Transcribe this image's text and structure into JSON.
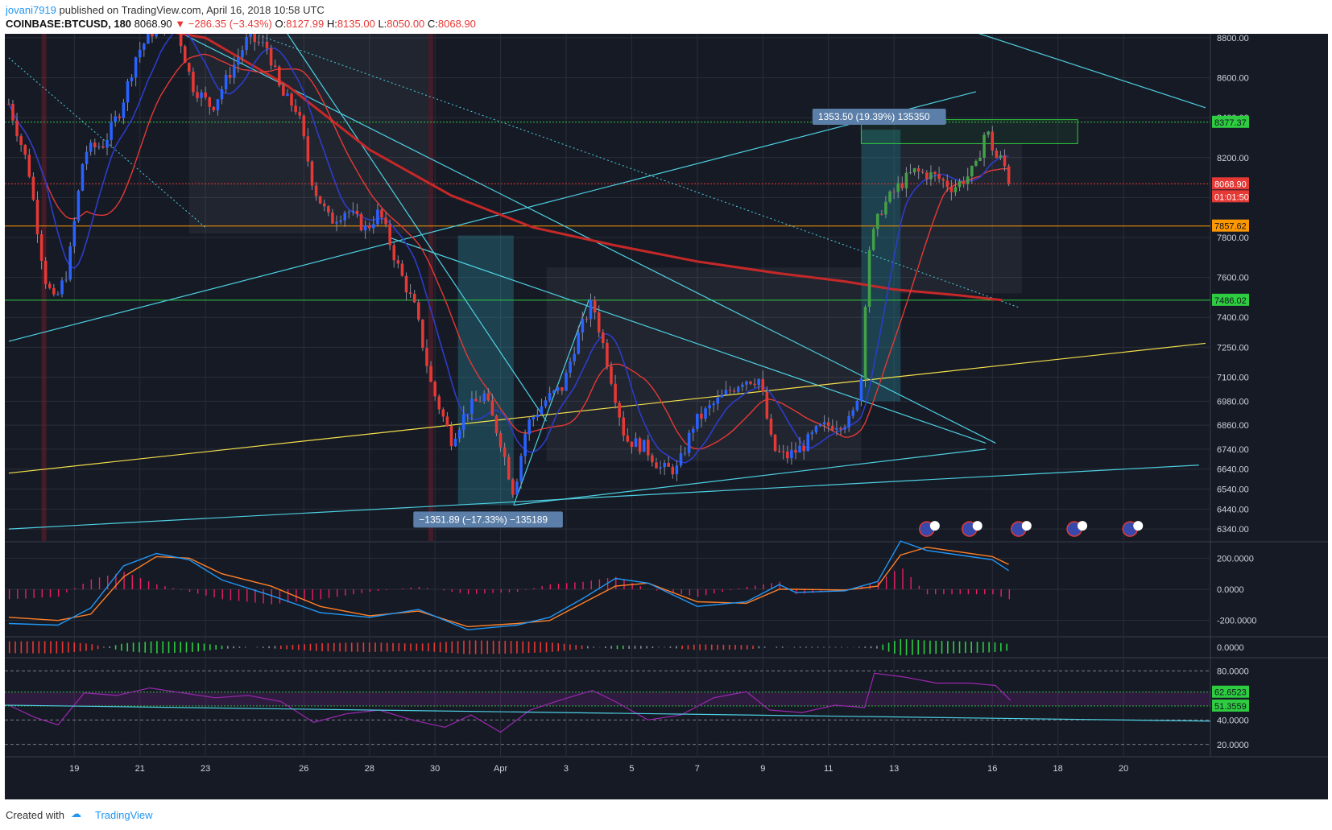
{
  "header": {
    "author": "jovani7919",
    "published_text": "published on TradingView.com, April 16, 2018 10:58 UTC",
    "symbol": "COINBASE:BTCUSD, 180",
    "last": "8068.90",
    "change": "▼ −286.35 (−3.43%)",
    "open_label": "O:",
    "open": "8127.99",
    "high_label": "H:",
    "high": "8135.00",
    "low_label": "L:",
    "low": "8050.00",
    "close_label": "C:",
    "close": "8068.90"
  },
  "footer": {
    "created_with": "Created with",
    "brand": "TradingView"
  },
  "colors": {
    "background": "#161a25",
    "grid": "#2a2e39",
    "up": "#2962ff",
    "down": "#e53935",
    "sma_red": "#e53935",
    "ema_blue": "#2d3cc9",
    "trend_cyan": "#4dd0e1",
    "trend_yellow": "#f5e04b",
    "level_green": "#2ecc40",
    "level_orange": "#ff9800",
    "macd": "#2196f3",
    "signal": "#ff7f27",
    "rsi": "#9c27b0"
  },
  "chart_data": {
    "type": "candlestick",
    "symbol": "COINBASE:BTCUSD",
    "timeframe": "180",
    "x_tick_labels": [
      "19",
      "21",
      "23",
      "26",
      "28",
      "30",
      "Apr",
      "3",
      "5",
      "7",
      "9",
      "11",
      "13",
      "16",
      "18",
      "20"
    ],
    "x_tick_days": [
      19,
      21,
      23,
      26,
      28,
      30,
      32,
      34,
      36,
      38,
      40,
      42,
      44,
      47,
      49,
      51
    ],
    "xlim_days": [
      16.88,
      53.65
    ],
    "y_ticks": [
      8800,
      8600,
      8400,
      8200,
      8000,
      7800,
      7600,
      7400,
      7250,
      7100,
      6980,
      6860,
      6740,
      6640,
      6540,
      6440,
      6340
    ],
    "y_tick_labels": [
      "8800.00",
      "8600.00",
      "8400.00",
      "8200.00",
      "8000.00",
      "7800.00",
      "7600.00",
      "7400.00",
      "7250.00",
      "7100.00",
      "6980.00",
      "6860.00",
      "6740.00",
      "6640.00",
      "6540.00",
      "6440.00",
      "6340.00"
    ],
    "ylim": [
      6280,
      8820
    ],
    "price_path": [
      [
        17.0,
        8470
      ],
      [
        17.6,
        8150
      ],
      [
        18.1,
        7600
      ],
      [
        18.4,
        7470
      ],
      [
        18.8,
        7640
      ],
      [
        19.3,
        8230
      ],
      [
        19.9,
        8270
      ],
      [
        20.4,
        8440
      ],
      [
        20.9,
        8720
      ],
      [
        21.5,
        8860
      ],
      [
        22.1,
        8870
      ],
      [
        22.6,
        8560
      ],
      [
        23.2,
        8450
      ],
      [
        23.7,
        8610
      ],
      [
        24.3,
        8800
      ],
      [
        24.9,
        8750
      ],
      [
        25.3,
        8520
      ],
      [
        25.8,
        8440
      ],
      [
        26.3,
        8050
      ],
      [
        26.8,
        7880
      ],
      [
        27.3,
        7940
      ],
      [
        27.9,
        7840
      ],
      [
        28.3,
        7930
      ],
      [
        28.9,
        7640
      ],
      [
        29.4,
        7440
      ],
      [
        29.9,
        7050
      ],
      [
        30.5,
        6790
      ],
      [
        31.0,
        6940
      ],
      [
        31.5,
        7010
      ],
      [
        32.0,
        6780
      ],
      [
        32.4,
        6520
      ],
      [
        32.8,
        6860
      ],
      [
        33.4,
        6990
      ],
      [
        33.9,
        7050
      ],
      [
        34.3,
        7280
      ],
      [
        34.8,
        7480
      ],
      [
        35.3,
        7150
      ],
      [
        35.8,
        6790
      ],
      [
        36.4,
        6750
      ],
      [
        36.9,
        6640
      ],
      [
        37.4,
        6640
      ],
      [
        37.9,
        6870
      ],
      [
        38.4,
        6950
      ],
      [
        38.9,
        7020
      ],
      [
        39.4,
        7090
      ],
      [
        39.9,
        7090
      ],
      [
        40.3,
        6740
      ],
      [
        40.7,
        6700
      ],
      [
        41.2,
        6750
      ],
      [
        41.7,
        6840
      ],
      [
        42.2,
        6870
      ],
      [
        42.7,
        6880
      ],
      [
        43.0,
        7100
      ],
      [
        43.2,
        7720
      ],
      [
        43.6,
        7940
      ],
      [
        44.1,
        8050
      ],
      [
        44.6,
        8130
      ],
      [
        45.2,
        8110
      ],
      [
        45.8,
        8050
      ],
      [
        46.2,
        8100
      ],
      [
        46.5,
        8150
      ],
      [
        46.8,
        8350
      ],
      [
        47.1,
        8200
      ],
      [
        47.3,
        8190
      ],
      [
        47.55,
        8069
      ]
    ],
    "current_price": 8068.9,
    "countdown": "01:01:50",
    "price_labels": [
      {
        "value": 8377.37,
        "text": "8377.37",
        "color": "#2ecc40"
      },
      {
        "value": 8068.9,
        "text": "8068.90",
        "color": "#e53935"
      },
      {
        "value": 7857.62,
        "text": "7857.62",
        "color": "#ff9800"
      },
      {
        "value": 7486.02,
        "text": "7486.02",
        "color": "#2ecc40"
      }
    ],
    "horizontal_levels": [
      {
        "value": 8377.37,
        "color": "#2ecc40",
        "style": "dotted"
      },
      {
        "value": 8068.9,
        "color": "#e53935",
        "style": "dotted"
      },
      {
        "value": 7857.62,
        "color": "#ff9800",
        "style": "solid"
      },
      {
        "value": 7486.02,
        "color": "#2ecc40",
        "style": "solid"
      }
    ],
    "ma_slow": [
      [
        20.5,
        8870
      ],
      [
        23,
        8800
      ],
      [
        25.5,
        8560
      ],
      [
        28,
        8240
      ],
      [
        30.5,
        8010
      ],
      [
        33,
        7850
      ],
      [
        35.5,
        7760
      ],
      [
        38,
        7680
      ],
      [
        40.5,
        7620
      ],
      [
        42.5,
        7580
      ],
      [
        44,
        7540
      ],
      [
        46,
        7510
      ],
      [
        47.3,
        7486
      ]
    ],
    "trendlines": [
      {
        "points": [
          [
            17,
            7280
          ],
          [
            46.5,
            8530
          ]
        ],
        "color": "#4dd0e1"
      },
      {
        "points": [
          [
            22.3,
            8820
          ],
          [
            47.1,
            6770
          ]
        ],
        "color": "#4dd0e1"
      },
      {
        "points": [
          [
            25.5,
            8820
          ],
          [
            33.4,
            6880
          ]
        ],
        "color": "#4dd0e1"
      },
      {
        "points": [
          [
            28.6,
            7800
          ],
          [
            46.8,
            6770
          ]
        ],
        "color": "#4dd0e1"
      },
      {
        "points": [
          [
            17,
            6340
          ],
          [
            53.3,
            6660
          ]
        ],
        "color": "#4dd0e1"
      },
      {
        "points": [
          [
            32.4,
            6460
          ],
          [
            46.8,
            6740
          ]
        ],
        "color": "#4dd0e1"
      },
      {
        "points": [
          [
            32.4,
            6460
          ],
          [
            34.7,
            7490
          ]
        ],
        "color": "#4dd0e1"
      },
      {
        "points": [
          [
            44.2,
            8950
          ],
          [
            53.5,
            8450
          ]
        ],
        "color": "#4dd0e1"
      },
      {
        "points": [
          [
            17,
            6620
          ],
          [
            53.5,
            7270
          ]
        ],
        "color": "#f5e04b"
      }
    ],
    "measure_down": {
      "from_day": 30.7,
      "to_day": 32.4,
      "top": 7810,
      "bottom": 6460,
      "label": "−1351.89 (−17.33%) −135189"
    },
    "measure_up": {
      "from_day": 43.0,
      "to_day": 44.2,
      "top": 8340,
      "bottom": 6980,
      "label": "1353.50 (19.39%) 135350"
    },
    "target_box": {
      "from_day": 43.0,
      "to_day": 49.6,
      "top": 8390,
      "bottom": 8270
    },
    "macd_ticks": [
      "200.0000",
      "0.0000",
      "-200.0000"
    ],
    "macd_tick_values": [
      200,
      0,
      -200
    ],
    "macd_path": [
      [
        17,
        -220
      ],
      [
        18.5,
        -230
      ],
      [
        19.5,
        -120
      ],
      [
        20.5,
        150
      ],
      [
        21.5,
        230
      ],
      [
        22.5,
        190
      ],
      [
        23.5,
        60
      ],
      [
        25,
        -40
      ],
      [
        26.5,
        -150
      ],
      [
        28,
        -180
      ],
      [
        29.5,
        -130
      ],
      [
        31,
        -260
      ],
      [
        32.5,
        -230
      ],
      [
        33.5,
        -180
      ],
      [
        34.5,
        -60
      ],
      [
        35.5,
        70
      ],
      [
        36.5,
        40
      ],
      [
        38,
        -110
      ],
      [
        39.5,
        -80
      ],
      [
        40.5,
        30
      ],
      [
        41,
        -20
      ],
      [
        42.5,
        -10
      ],
      [
        43.5,
        50
      ],
      [
        44.2,
        310
      ],
      [
        45,
        250
      ],
      [
        46,
        220
      ],
      [
        47,
        190
      ],
      [
        47.5,
        120
      ]
    ],
    "signal_path": [
      [
        17,
        -180
      ],
      [
        18.5,
        -200
      ],
      [
        19.5,
        -160
      ],
      [
        20.5,
        80
      ],
      [
        21.5,
        210
      ],
      [
        22.5,
        200
      ],
      [
        23.5,
        100
      ],
      [
        25,
        20
      ],
      [
        26.5,
        -110
      ],
      [
        28,
        -170
      ],
      [
        29.5,
        -140
      ],
      [
        31,
        -240
      ],
      [
        32.5,
        -220
      ],
      [
        33.5,
        -200
      ],
      [
        34.5,
        -90
      ],
      [
        35.5,
        20
      ],
      [
        36.5,
        40
      ],
      [
        38,
        -80
      ],
      [
        39.5,
        -90
      ],
      [
        40.5,
        0
      ],
      [
        41,
        0
      ],
      [
        42.5,
        -5
      ],
      [
        43.5,
        20
      ],
      [
        44.2,
        220
      ],
      [
        45,
        270
      ],
      [
        46,
        240
      ],
      [
        47,
        210
      ],
      [
        47.5,
        160
      ]
    ],
    "zero_ticks": [
      "0.0000"
    ],
    "rsi_ticks": [
      "80.0000",
      "62.6523",
      "51.3559",
      "40.0000",
      "20.0000"
    ],
    "rsi_tick_values": [
      80,
      62.6523,
      51.3559,
      40,
      20
    ],
    "rsi_path": [
      [
        17,
        52
      ],
      [
        17.8,
        42
      ],
      [
        18.5,
        36
      ],
      [
        19.3,
        62
      ],
      [
        20.3,
        60
      ],
      [
        21.3,
        66
      ],
      [
        22.3,
        62
      ],
      [
        23.3,
        58
      ],
      [
        24.3,
        60
      ],
      [
        25.3,
        55
      ],
      [
        26.3,
        38
      ],
      [
        27.3,
        45
      ],
      [
        28.3,
        48
      ],
      [
        29.3,
        40
      ],
      [
        30.3,
        34
      ],
      [
        31.1,
        44
      ],
      [
        32.0,
        30
      ],
      [
        32.9,
        48
      ],
      [
        33.8,
        56
      ],
      [
        34.8,
        64
      ],
      [
        35.5,
        55
      ],
      [
        36.5,
        40
      ],
      [
        37.5,
        44
      ],
      [
        38.5,
        58
      ],
      [
        39.5,
        63
      ],
      [
        40.2,
        48
      ],
      [
        41.2,
        46
      ],
      [
        42.2,
        52
      ],
      [
        43.1,
        50
      ],
      [
        43.4,
        78
      ],
      [
        44.3,
        75
      ],
      [
        45.3,
        70
      ],
      [
        46.3,
        70
      ],
      [
        47.1,
        68
      ],
      [
        47.55,
        56
      ]
    ]
  }
}
